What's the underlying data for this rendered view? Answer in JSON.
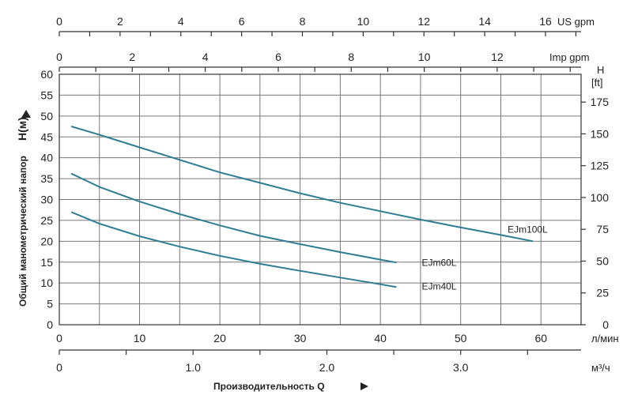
{
  "chart_data": {
    "type": "line",
    "title": "",
    "xlabel": "Производительность  Q",
    "ylabel": "Общий манометрический напор",
    "ylabel_unit": "H(м)",
    "ylim": [
      0,
      60
    ],
    "xlim": [
      0,
      65
    ],
    "y_ticks": [
      0,
      5,
      10,
      15,
      20,
      25,
      30,
      35,
      40,
      45,
      50,
      55,
      60
    ],
    "x_ticks": [
      0,
      10,
      20,
      30,
      40,
      50,
      60
    ],
    "x_unit": "л/мин",
    "secondary_axes": {
      "us_gpm": {
        "unit": "US gpm",
        "ticks": [
          "0",
          "2",
          "4",
          "6",
          "8",
          "10",
          "12",
          "14",
          "16"
        ],
        "values": [
          0,
          2,
          4,
          6,
          8,
          10,
          12,
          14,
          16
        ]
      },
      "imp_gpm": {
        "unit": "Imp gpm",
        "ticks": [
          "0",
          "2",
          "4",
          "6",
          "8",
          "10",
          "12"
        ],
        "values": [
          0,
          2,
          4,
          6,
          8,
          10,
          12
        ]
      },
      "m3h": {
        "unit": "м³/ч",
        "ticks": [
          "0",
          "1.0",
          "2.0",
          "3.0"
        ],
        "values": [
          0,
          1,
          2,
          3
        ]
      },
      "ft": {
        "unit_line1": "H",
        "unit_line2": "[ft]",
        "ticks": [
          "0",
          "25",
          "50",
          "75",
          "100",
          "125",
          "150",
          "175"
        ],
        "values": [
          0,
          25,
          50,
          75,
          100,
          125,
          150,
          175
        ]
      }
    },
    "series": [
      {
        "name": "EJm100L",
        "x": [
          1.5,
          5,
          10,
          15,
          20,
          25,
          30,
          35,
          40,
          45,
          50,
          55,
          59
        ],
        "y": [
          47.5,
          45.5,
          42.5,
          39.5,
          36.5,
          34,
          31.5,
          29.2,
          27.2,
          25.2,
          23.3,
          21.5,
          20
        ]
      },
      {
        "name": "EJm60L",
        "x": [
          1.5,
          5,
          10,
          15,
          20,
          25,
          30,
          35,
          40,
          42
        ],
        "y": [
          36.2,
          33,
          29.5,
          26.5,
          23.8,
          21.3,
          19.3,
          17.4,
          15.6,
          14.9
        ]
      },
      {
        "name": "EJm40L",
        "x": [
          1.5,
          5,
          10,
          15,
          20,
          25,
          30,
          35,
          40,
          42
        ],
        "y": [
          27,
          24.2,
          21.2,
          18.7,
          16.5,
          14.6,
          12.9,
          11.3,
          9.7,
          9
        ]
      }
    ]
  }
}
